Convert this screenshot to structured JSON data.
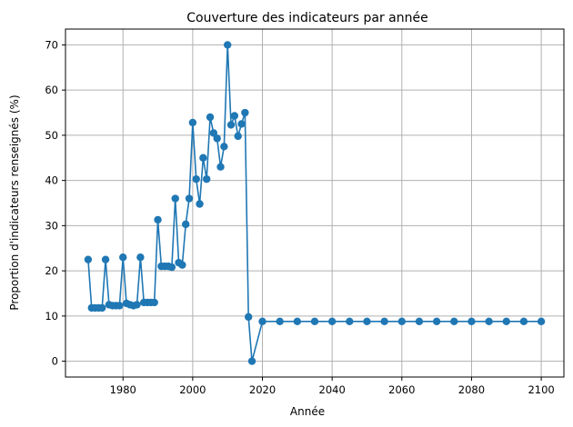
{
  "chart_data": {
    "type": "line",
    "title": "Couverture des indicateurs par année",
    "xlabel": "Année",
    "ylabel": "Proportion d'indicateurs renseignés (%)",
    "xlim": [
      1963.5,
      2106.5
    ],
    "ylim": [
      -3.5,
      73.5
    ],
    "xticks": [
      1980,
      2000,
      2020,
      2040,
      2060,
      2080,
      2100
    ],
    "yticks": [
      0,
      10,
      20,
      30,
      40,
      50,
      60,
      70
    ],
    "grid": true,
    "series": [
      {
        "color": "#1f77b4",
        "marker": "circle",
        "x": [
          1970,
          1971,
          1972,
          1973,
          1974,
          1975,
          1976,
          1977,
          1978,
          1979,
          1980,
          1981,
          1982,
          1983,
          1984,
          1985,
          1986,
          1987,
          1988,
          1989,
          1990,
          1991,
          1992,
          1993,
          1994,
          1995,
          1996,
          1997,
          1998,
          1999,
          2000,
          2001,
          2002,
          2003,
          2004,
          2005,
          2006,
          2007,
          2008,
          2009,
          2010,
          2011,
          2012,
          2013,
          2014,
          2015,
          2016,
          2017,
          2020,
          2025,
          2030,
          2035,
          2040,
          2045,
          2050,
          2055,
          2060,
          2065,
          2070,
          2075,
          2080,
          2085,
          2090,
          2095,
          2100
        ],
        "y": [
          22.5,
          11.8,
          11.8,
          11.8,
          11.8,
          22.5,
          12.5,
          12.3,
          12.3,
          12.3,
          23.0,
          12.8,
          12.5,
          12.3,
          12.5,
          23.0,
          13.0,
          13.0,
          13.0,
          13.0,
          31.3,
          21.0,
          21.0,
          21.0,
          20.8,
          36.0,
          21.8,
          21.3,
          30.3,
          36.0,
          52.8,
          40.3,
          34.8,
          45.0,
          40.3,
          54.0,
          50.5,
          49.3,
          43.0,
          47.5,
          70.0,
          52.3,
          54.3,
          49.8,
          52.5,
          55.0,
          9.8,
          0.0,
          8.8,
          8.8,
          8.8,
          8.8,
          8.8,
          8.8,
          8.8,
          8.8,
          8.8,
          8.8,
          8.8,
          8.8,
          8.8,
          8.8,
          8.8,
          8.8,
          8.8
        ]
      }
    ]
  }
}
